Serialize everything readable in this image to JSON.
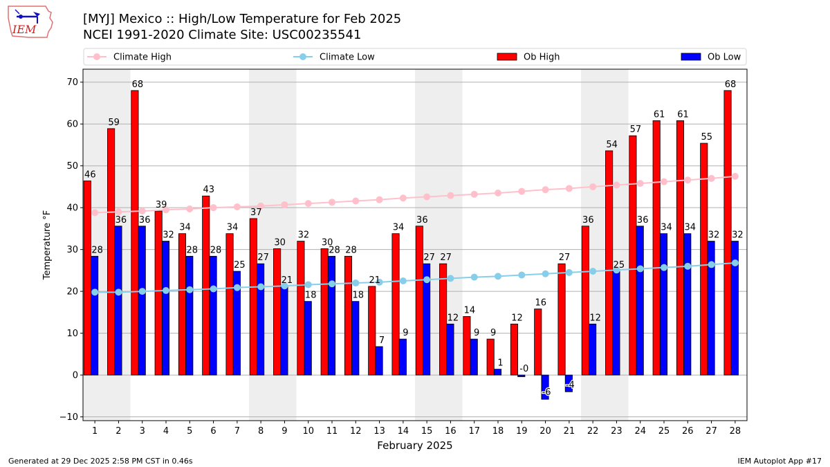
{
  "header": {
    "title_line1": "[MYJ] Mexico :: High/Low Temperature for Feb 2025",
    "title_line2": "NCEI 1991-2020 Climate Site: USC00235541",
    "logo_text": "IEM"
  },
  "footer": {
    "generated": "Generated at 29 Dec 2025 2:58 PM CST in 0.46s",
    "app": "IEM Autoplot App #17"
  },
  "colors": {
    "ob_high": "#ff0000",
    "ob_low": "#0000ff",
    "climate_high": "#ffc0cb",
    "climate_low": "#87ceeb",
    "weekend_shade": "#eeeeee",
    "grid": "#b0b0b0"
  },
  "chart_data": {
    "type": "bar",
    "title": "[MYJ] Mexico :: High/Low Temperature for Feb 2025",
    "subtitle": "NCEI 1991-2020 Climate Site: USC00235541",
    "xlabel": "February 2025",
    "ylabel": "Temperature °F",
    "ylim": [
      -10.9,
      73.1
    ],
    "yticks": [
      -10,
      0,
      10,
      20,
      30,
      40,
      50,
      60,
      70
    ],
    "ytick_labels": [
      "−10",
      "0",
      "10",
      "20",
      "30",
      "40",
      "50",
      "60",
      "70"
    ],
    "grid": true,
    "legend": {
      "placement": "top",
      "entries": [
        "Climate High",
        "Climate Low",
        "Ob High",
        "Ob Low"
      ]
    },
    "weekend_shaded_days": [
      [
        1,
        2
      ],
      [
        8,
        9
      ],
      [
        15,
        16
      ],
      [
        22,
        23
      ]
    ],
    "categories": [
      "1",
      "2",
      "3",
      "4",
      "5",
      "6",
      "7",
      "8",
      "9",
      "10",
      "11",
      "12",
      "13",
      "14",
      "15",
      "16",
      "17",
      "18",
      "19",
      "20",
      "21",
      "22",
      "23",
      "24",
      "25",
      "26",
      "27",
      "28"
    ],
    "series": [
      {
        "name": "Ob High",
        "kind": "bar",
        "values": [
          46.4,
          58.9,
          68.0,
          39.2,
          33.8,
          42.8,
          33.8,
          37.4,
          30.2,
          32.0,
          30.2,
          28.4,
          21.2,
          33.8,
          35.6,
          26.6,
          14.0,
          8.6,
          12.2,
          15.8,
          26.6,
          35.6,
          53.6,
          57.2,
          60.8,
          60.8,
          55.4,
          68.0
        ],
        "labels": [
          "46",
          "59",
          "68",
          "39",
          "34",
          "43",
          "34",
          "37",
          "30",
          "32",
          "30",
          "28",
          "21",
          "34",
          "36",
          "27",
          "14",
          "9",
          "12",
          "16",
          "27",
          "36",
          "54",
          "57",
          "61",
          "61",
          "55",
          "68"
        ]
      },
      {
        "name": "Ob Low",
        "kind": "bar",
        "values": [
          28.4,
          35.6,
          35.6,
          32.0,
          28.4,
          28.4,
          24.8,
          26.6,
          21.2,
          17.6,
          28.4,
          17.6,
          6.8,
          8.6,
          26.6,
          12.2,
          8.6,
          1.4,
          -0.4,
          -5.8,
          -4.0,
          12.2,
          24.8,
          35.6,
          33.8,
          33.8,
          32.0,
          32.0
        ],
        "labels": [
          "28",
          "36",
          "36",
          "32",
          "28",
          "28",
          "25",
          "27",
          "21",
          "18",
          "28",
          "18",
          "7",
          "9",
          "27",
          "12",
          "9",
          "1",
          "-0",
          "-6",
          "-4",
          "12",
          "25",
          "36",
          "34",
          "34",
          "32",
          "32"
        ]
      },
      {
        "name": "Climate High",
        "kind": "line",
        "values": [
          38.8,
          39.0,
          39.2,
          39.5,
          39.7,
          40.0,
          40.2,
          40.4,
          40.7,
          41.0,
          41.3,
          41.6,
          41.9,
          42.3,
          42.6,
          42.9,
          43.2,
          43.5,
          43.9,
          44.3,
          44.6,
          45.0,
          45.4,
          45.8,
          46.2,
          46.6,
          47.0,
          47.5
        ]
      },
      {
        "name": "Climate Low",
        "kind": "line",
        "values": [
          19.8,
          19.8,
          20.0,
          20.2,
          20.4,
          20.6,
          20.9,
          21.1,
          21.3,
          21.6,
          21.8,
          22.0,
          22.2,
          22.5,
          22.8,
          23.1,
          23.4,
          23.6,
          23.9,
          24.2,
          24.5,
          24.8,
          25.1,
          25.4,
          25.7,
          26.0,
          26.4,
          26.8
        ]
      }
    ]
  }
}
